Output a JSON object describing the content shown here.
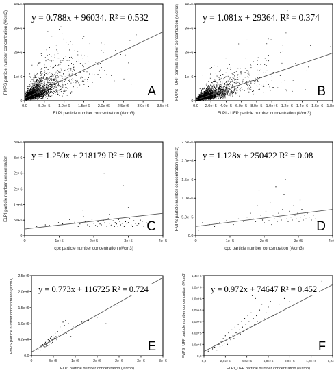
{
  "chart_data": [
    {
      "type": "scatter",
      "panel": "A",
      "equation": "y = 0.788x + 96034.  R² = 0.532",
      "xlabel": "ELPI particle number concentration (#/cm3)",
      "ylabel": "FMPS particle number concentration (#/cm3)",
      "xlim": [
        0,
        3500000
      ],
      "ylim": [
        0,
        4000000
      ],
      "xticks": [
        "0.0",
        "5.0e+5",
        "1.0e+6",
        "1.5e+6",
        "2.0e+6",
        "2.5e+6",
        "3.0e+6",
        "3.5e+6"
      ],
      "yticks": [
        "0",
        "1e+6",
        "2e+6",
        "3e+6",
        "4e+6"
      ],
      "fit": {
        "slope": 0.788,
        "intercept": 96034,
        "r2": 0.532
      },
      "point_count": 2600,
      "x_median": 250000,
      "y_median": 500000
    },
    {
      "type": "scatter",
      "panel": "B",
      "equation": "y = 1.081x + 29364.  R² = 0.374",
      "xlabel": "ELPI - UFP particle number concentration (#/cm3)",
      "ylabel": "FMPS - UFP particle number concentration (#/cm3)",
      "xlim": [
        0,
        1800000
      ],
      "ylim": [
        0,
        4000000
      ],
      "xticks": [
        "0.0",
        "2.0e+5",
        "4.0e+5",
        "6.0e+5",
        "8.0e+5",
        "1.0e+6",
        "1.2e+6",
        "1.4e+6",
        "1.6e+6",
        "1.8e+6"
      ],
      "yticks": [
        "0",
        "1e+6",
        "2e+6",
        "3e+6",
        "4e+6"
      ],
      "fit": {
        "slope": 1.081,
        "intercept": 29364,
        "r2": 0.374
      },
      "point_count": 2600,
      "x_median": 140000,
      "y_median": 300000
    },
    {
      "type": "scatter",
      "panel": "C",
      "equation": "y = 1.250x + 218179  R² = 0.08",
      "xlabel": "cpc particle number concentration (#/cm3)",
      "ylabel": "ELPI particle number concentration",
      "xlim": [
        0,
        400000
      ],
      "ylim": [
        0,
        3000000
      ],
      "xticks": [
        "0",
        "1e+5",
        "2e+5",
        "3e+5",
        "4e+5"
      ],
      "yticks": [
        "0",
        "5e+5",
        "1e+6",
        "2e+6",
        "2e+6",
        "3e+6",
        "3e+6"
      ],
      "fit": {
        "slope": 1.25,
        "intercept": 218179,
        "r2": 0.08
      },
      "points": [
        [
          12000,
          250000
        ],
        [
          35000,
          300000
        ],
        [
          60000,
          350000
        ],
        [
          72000,
          330000
        ],
        [
          98000,
          420000
        ],
        [
          110000,
          380000
        ],
        [
          130000,
          520000
        ],
        [
          145000,
          430000
        ],
        [
          155000,
          300000
        ],
        [
          160000,
          380000
        ],
        [
          170000,
          620000
        ],
        [
          175000,
          460000
        ],
        [
          182000,
          350000
        ],
        [
          188000,
          300000
        ],
        [
          195000,
          520000
        ],
        [
          200000,
          400000
        ],
        [
          205000,
          330000
        ],
        [
          210000,
          300000
        ],
        [
          212000,
          450000
        ],
        [
          218000,
          380000
        ],
        [
          222000,
          350000
        ],
        [
          228000,
          480000
        ],
        [
          230000,
          2000000
        ],
        [
          232000,
          420000
        ],
        [
          238000,
          300000
        ],
        [
          242000,
          550000
        ],
        [
          246000,
          400000
        ],
        [
          250000,
          330000
        ],
        [
          252000,
          350000
        ],
        [
          256000,
          480000
        ],
        [
          260000,
          300000
        ],
        [
          262000,
          420000
        ],
        [
          266000,
          380000
        ],
        [
          270000,
          300000
        ],
        [
          272000,
          520000
        ],
        [
          275000,
          460000
        ],
        [
          278000,
          350000
        ],
        [
          282000,
          400000
        ],
        [
          285000,
          1600000
        ],
        [
          288000,
          300000
        ],
        [
          292000,
          450000
        ],
        [
          296000,
          380000
        ],
        [
          300000,
          420000
        ],
        [
          304000,
          550000
        ],
        [
          308000,
          350000
        ],
        [
          312000,
          300000
        ],
        [
          316000,
          480000
        ],
        [
          320000,
          400000
        ],
        [
          325000,
          330000
        ],
        [
          330000,
          380000
        ],
        [
          335000,
          500000
        ],
        [
          340000,
          450000
        ],
        [
          345000,
          300000
        ],
        [
          352000,
          420000
        ],
        [
          360000,
          380000
        ],
        [
          168000,
          820000
        ],
        [
          245000,
          680000
        ],
        [
          300000,
          900000
        ]
      ]
    },
    {
      "type": "scatter",
      "panel": "D",
      "equation": "y = 1.128x + 250422  R² = 0.08",
      "xlabel": "cpc particle number concentration (#/cm3)",
      "ylabel": "FMPS particle number concentration (#/cm3)",
      "xlim": [
        0,
        400000
      ],
      "ylim": [
        0,
        2500000
      ],
      "xticks": [
        "0",
        "1e+5",
        "2e+5",
        "3e+5",
        "4e+5"
      ],
      "yticks": [
        "0.0",
        "5.0e+5",
        "1.0e+6",
        "1.5e+6",
        "2.0e+6",
        "2.5e+6"
      ],
      "fit": {
        "slope": 1.128,
        "intercept": 250422,
        "r2": 0.08
      },
      "points": [
        [
          8000,
          150000
        ],
        [
          20000,
          350000
        ],
        [
          40000,
          300000
        ],
        [
          55000,
          250000
        ],
        [
          70000,
          350000
        ],
        [
          90000,
          400000
        ],
        [
          110000,
          300000
        ],
        [
          125000,
          450000
        ],
        [
          140000,
          380000
        ],
        [
          150000,
          500000
        ],
        [
          160000,
          600000
        ],
        [
          168000,
          450000
        ],
        [
          175000,
          380000
        ],
        [
          180000,
          800000
        ],
        [
          185000,
          1200000
        ],
        [
          190000,
          550000
        ],
        [
          195000,
          420000
        ],
        [
          200000,
          350000
        ],
        [
          205000,
          650000
        ],
        [
          210000,
          500000
        ],
        [
          214000,
          400000
        ],
        [
          218000,
          900000
        ],
        [
          222000,
          300000
        ],
        [
          226000,
          550000
        ],
        [
          230000,
          450000
        ],
        [
          234000,
          1300000
        ],
        [
          238000,
          380000
        ],
        [
          242000,
          600000
        ],
        [
          246000,
          500000
        ],
        [
          250000,
          420000
        ],
        [
          254000,
          700000
        ],
        [
          258000,
          1100000
        ],
        [
          262000,
          550000
        ],
        [
          266000,
          450000
        ],
        [
          270000,
          380000
        ],
        [
          274000,
          650000
        ],
        [
          278000,
          500000
        ],
        [
          282000,
          420000
        ],
        [
          286000,
          800000
        ],
        [
          290000,
          550000
        ],
        [
          294000,
          450000
        ],
        [
          298000,
          600000
        ],
        [
          302000,
          380000
        ],
        [
          306000,
          500000
        ],
        [
          310000,
          700000
        ],
        [
          314000,
          420000
        ],
        [
          318000,
          550000
        ],
        [
          322000,
          450000
        ],
        [
          326000,
          600000
        ],
        [
          332000,
          500000
        ],
        [
          338000,
          420000
        ],
        [
          344000,
          550000
        ],
        [
          350000,
          450000
        ],
        [
          356000,
          380000
        ],
        [
          262000,
          1500000
        ],
        [
          305000,
          950000
        ]
      ]
    },
    {
      "type": "scatter",
      "panel": "E",
      "equation": "y = 0.773x + 116725  R² = 0.724",
      "xlabel": "ELPI particle number concentration (#/cm3)",
      "ylabel": "FMPS particle number concentration (#/cm3)",
      "xlim": [
        0,
        3000000
      ],
      "ylim": [
        0,
        2500000
      ],
      "xticks": [
        "0",
        "5e+5",
        "1e+6",
        "2e+6",
        "2e+6",
        "3e+6",
        "3e+6"
      ],
      "yticks": [
        "0.0",
        "5.0e+5",
        "1.0e+6",
        "1.5e+6",
        "2.0e+6",
        "2.5e+6"
      ],
      "fit": {
        "slope": 0.773,
        "intercept": 116725,
        "r2": 0.724
      },
      "points": [
        [
          100000,
          120000
        ],
        [
          150000,
          200000
        ],
        [
          180000,
          250000
        ],
        [
          200000,
          180000
        ],
        [
          220000,
          300000
        ],
        [
          240000,
          260000
        ],
        [
          260000,
          350000
        ],
        [
          280000,
          300000
        ],
        [
          300000,
          380000
        ],
        [
          310000,
          280000
        ],
        [
          320000,
          420000
        ],
        [
          330000,
          350000
        ],
        [
          340000,
          300000
        ],
        [
          350000,
          450000
        ],
        [
          360000,
          380000
        ],
        [
          370000,
          320000
        ],
        [
          380000,
          500000
        ],
        [
          390000,
          420000
        ],
        [
          400000,
          350000
        ],
        [
          410000,
          480000
        ],
        [
          420000,
          400000
        ],
        [
          430000,
          550000
        ],
        [
          440000,
          450000
        ],
        [
          450000,
          380000
        ],
        [
          460000,
          600000
        ],
        [
          470000,
          500000
        ],
        [
          480000,
          420000
        ],
        [
          500000,
          650000
        ],
        [
          520000,
          550000
        ],
        [
          540000,
          700000
        ],
        [
          560000,
          600000
        ],
        [
          580000,
          500000
        ],
        [
          600000,
          750000
        ],
        [
          620000,
          650000
        ],
        [
          650000,
          900000
        ],
        [
          700000,
          800000
        ],
        [
          720000,
          1050000
        ],
        [
          750000,
          950000
        ],
        [
          780000,
          1100000
        ],
        [
          800000,
          700000
        ],
        [
          850000,
          1000000
        ],
        [
          900000,
          600000
        ],
        [
          950000,
          900000
        ],
        [
          1050000,
          950000
        ],
        [
          1150000,
          1050000
        ],
        [
          1300000,
          1100000
        ],
        [
          1500000,
          1200000
        ],
        [
          1950000,
          1550000
        ],
        [
          1700000,
          1000000
        ],
        [
          2400000,
          1900000
        ]
      ]
    },
    {
      "type": "scatter",
      "panel": "F",
      "equation": "y = 0.972x + 74647  R² = 0.452",
      "xlabel": "ELPI_UFP particle number concentration (#/cm3)",
      "ylabel": "FMPS_UFP particle number concentration (#/cm3)",
      "xlim": [
        0,
        1200000
      ],
      "ylim": [
        0,
        1400000
      ],
      "xticks": [
        "0,0",
        "2,0e+5",
        "4,0e+5",
        "6,0e+5",
        "8,0e+5",
        "1,0e+6",
        "1,2e+6"
      ],
      "yticks": [
        "0,0",
        "2,0e+5",
        "4,0e+5",
        "6,0e+5",
        "8,0e+5",
        "1,0e+6",
        "1,2e+6",
        "1,4e+6"
      ],
      "fit": {
        "slope": 0.972,
        "intercept": 74647,
        "r2": 0.452
      },
      "points": [
        [
          40000,
          80000
        ],
        [
          80000,
          120000
        ],
        [
          100000,
          150000
        ],
        [
          120000,
          100000
        ],
        [
          140000,
          200000
        ],
        [
          150000,
          160000
        ],
        [
          160000,
          250000
        ],
        [
          170000,
          180000
        ],
        [
          180000,
          300000
        ],
        [
          190000,
          220000
        ],
        [
          200000,
          350000
        ],
        [
          210000,
          260000
        ],
        [
          220000,
          200000
        ],
        [
          230000,
          400000
        ],
        [
          240000,
          320000
        ],
        [
          250000,
          280000
        ],
        [
          260000,
          450000
        ],
        [
          270000,
          350000
        ],
        [
          280000,
          300000
        ],
        [
          290000,
          500000
        ],
        [
          300000,
          400000
        ],
        [
          310000,
          330000
        ],
        [
          320000,
          550000
        ],
        [
          330000,
          450000
        ],
        [
          340000,
          380000
        ],
        [
          350000,
          600000
        ],
        [
          360000,
          500000
        ],
        [
          370000,
          420000
        ],
        [
          380000,
          650000
        ],
        [
          390000,
          550000
        ],
        [
          400000,
          460000
        ],
        [
          410000,
          700000
        ],
        [
          420000,
          600000
        ],
        [
          430000,
          500000
        ],
        [
          440000,
          750000
        ],
        [
          450000,
          1050000
        ],
        [
          460000,
          650000
        ],
        [
          470000,
          550000
        ],
        [
          480000,
          1000000
        ],
        [
          490000,
          700000
        ],
        [
          500000,
          600000
        ],
        [
          520000,
          800000
        ],
        [
          540000,
          900000
        ],
        [
          560000,
          650000
        ],
        [
          580000,
          750000
        ],
        [
          600000,
          850000
        ],
        [
          620000,
          950000
        ],
        [
          650000,
          700000
        ],
        [
          700000,
          900000
        ],
        [
          750000,
          1000000
        ],
        [
          800000,
          950000
        ],
        [
          850000,
          1100000
        ],
        [
          1000000,
          1250000
        ],
        [
          1100000,
          1300000
        ]
      ]
    }
  ]
}
